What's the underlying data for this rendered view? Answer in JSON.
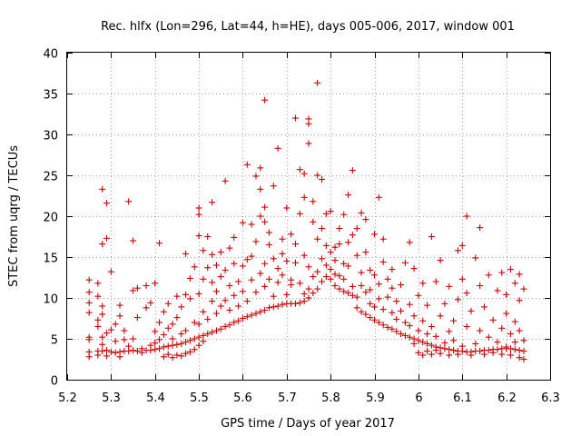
{
  "chart_data": {
    "type": "scatter",
    "title": "Rec. hlfx (Lon=296, Lat=44, h=HE), days 005-006, 2017, window 001",
    "xlabel": "GPS time / Days of year 2017",
    "ylabel": "STEC from uqrg / TECUs",
    "xlim": [
      5.2,
      6.3
    ],
    "ylim": [
      0,
      40
    ],
    "xticks": [
      "5.2",
      "5.3",
      "5.4",
      "5.5",
      "5.6",
      "5.7",
      "5.8",
      "5.9",
      "6",
      "6.1",
      "6.2",
      "6.3"
    ],
    "yticks": [
      "0",
      "5",
      "10",
      "15",
      "20",
      "25",
      "30",
      "35",
      "40"
    ],
    "grid": true,
    "marker": "+",
    "color": "#cc0000",
    "points": [
      [
        5.25,
        3.4
      ],
      [
        5.25,
        2.8
      ],
      [
        5.25,
        4.9
      ],
      [
        5.25,
        5.2
      ],
      [
        5.25,
        8.2
      ],
      [
        5.25,
        9.4
      ],
      [
        5.25,
        10.7
      ],
      [
        5.25,
        12.2
      ],
      [
        5.27,
        3.5
      ],
      [
        5.27,
        3.0
      ],
      [
        5.27,
        6.5
      ],
      [
        5.27,
        7.3
      ],
      [
        5.27,
        11.8
      ],
      [
        5.27,
        10.2
      ],
      [
        5.28,
        3.5
      ],
      [
        5.28,
        4.3
      ],
      [
        5.28,
        5.2
      ],
      [
        5.28,
        8.0
      ],
      [
        5.28,
        9.0
      ],
      [
        5.28,
        16.6
      ],
      [
        5.28,
        23.3
      ],
      [
        5.29,
        3.6
      ],
      [
        5.29,
        2.9
      ],
      [
        5.29,
        5.7
      ],
      [
        5.29,
        17.3
      ],
      [
        5.29,
        21.6
      ],
      [
        5.3,
        3.4
      ],
      [
        5.3,
        6.1
      ],
      [
        5.3,
        13.2
      ],
      [
        5.31,
        3.3
      ],
      [
        5.31,
        4.7
      ],
      [
        5.31,
        6.8
      ],
      [
        5.32,
        3.4
      ],
      [
        5.32,
        2.8
      ],
      [
        5.32,
        7.8
      ],
      [
        5.32,
        9.1
      ],
      [
        5.33,
        3.5
      ],
      [
        5.33,
        4.9
      ],
      [
        5.33,
        6.0
      ],
      [
        5.34,
        3.5
      ],
      [
        5.34,
        21.8
      ],
      [
        5.34,
        4.1
      ],
      [
        5.35,
        3.6
      ],
      [
        5.35,
        17.0
      ],
      [
        5.35,
        10.9
      ],
      [
        5.35,
        5.0
      ],
      [
        5.36,
        3.5
      ],
      [
        5.36,
        7.6
      ],
      [
        5.36,
        11.2
      ],
      [
        5.37,
        3.3
      ],
      [
        5.37,
        3.8
      ],
      [
        5.38,
        3.6
      ],
      [
        5.38,
        11.5
      ],
      [
        5.38,
        8.8
      ],
      [
        5.39,
        3.6
      ],
      [
        5.39,
        4.2
      ],
      [
        5.39,
        9.4
      ],
      [
        5.4,
        3.7
      ],
      [
        5.4,
        4.5
      ],
      [
        5.4,
        5.9
      ],
      [
        5.4,
        11.8
      ],
      [
        5.41,
        3.8
      ],
      [
        5.41,
        4.9
      ],
      [
        5.41,
        16.7
      ],
      [
        5.41,
        7.0
      ],
      [
        5.42,
        4.0
      ],
      [
        5.42,
        2.8
      ],
      [
        5.42,
        5.5
      ],
      [
        5.42,
        8.3
      ],
      [
        5.43,
        4.1
      ],
      [
        5.43,
        3.1
      ],
      [
        5.43,
        6.3
      ],
      [
        5.43,
        9.3
      ],
      [
        5.44,
        4.2
      ],
      [
        5.44,
        2.7
      ],
      [
        5.44,
        5.0
      ],
      [
        5.44,
        6.8
      ],
      [
        5.45,
        4.3
      ],
      [
        5.45,
        3.0
      ],
      [
        5.45,
        7.6
      ],
      [
        5.45,
        10.2
      ],
      [
        5.46,
        4.4
      ],
      [
        5.46,
        2.9
      ],
      [
        5.46,
        5.6
      ],
      [
        5.46,
        8.9
      ],
      [
        5.47,
        4.6
      ],
      [
        5.47,
        3.2
      ],
      [
        5.47,
        6.0
      ],
      [
        5.47,
        10.4
      ],
      [
        5.47,
        15.4
      ],
      [
        5.48,
        4.8
      ],
      [
        5.48,
        3.4
      ],
      [
        5.48,
        9.9
      ],
      [
        5.48,
        12.4
      ],
      [
        5.49,
        5.0
      ],
      [
        5.49,
        3.7
      ],
      [
        5.49,
        7.0
      ],
      [
        5.49,
        13.8
      ],
      [
        5.5,
        5.2
      ],
      [
        5.5,
        4.2
      ],
      [
        5.5,
        6.8
      ],
      [
        5.5,
        10.5
      ],
      [
        5.5,
        17.6
      ],
      [
        5.5,
        20.2
      ],
      [
        5.5,
        21.0
      ],
      [
        5.51,
        5.4
      ],
      [
        5.51,
        4.7
      ],
      [
        5.51,
        8.3
      ],
      [
        5.51,
        12.3
      ],
      [
        5.51,
        15.8
      ],
      [
        5.52,
        5.6
      ],
      [
        5.52,
        7.4
      ],
      [
        5.52,
        13.7
      ],
      [
        5.52,
        17.5
      ],
      [
        5.53,
        5.8
      ],
      [
        5.53,
        9.6
      ],
      [
        5.53,
        11.9
      ],
      [
        5.53,
        15.3
      ],
      [
        5.53,
        21.7
      ],
      [
        5.54,
        6.0
      ],
      [
        5.54,
        8.1
      ],
      [
        5.54,
        10.8
      ],
      [
        5.54,
        14.0
      ],
      [
        5.55,
        6.2
      ],
      [
        5.55,
        9.0
      ],
      [
        5.55,
        12.6
      ],
      [
        5.55,
        15.6
      ],
      [
        5.56,
        6.5
      ],
      [
        5.56,
        9.7
      ],
      [
        5.56,
        13.4
      ],
      [
        5.56,
        24.3
      ],
      [
        5.57,
        6.7
      ],
      [
        5.57,
        8.5
      ],
      [
        5.57,
        11.5
      ],
      [
        5.57,
        16.1
      ],
      [
        5.58,
        7.0
      ],
      [
        5.58,
        10.3
      ],
      [
        5.58,
        14.2
      ],
      [
        5.58,
        17.4
      ],
      [
        5.59,
        7.2
      ],
      [
        5.59,
        9.0
      ],
      [
        5.59,
        12.0
      ],
      [
        5.6,
        7.5
      ],
      [
        5.6,
        10.8
      ],
      [
        5.6,
        13.9
      ],
      [
        5.6,
        19.2
      ],
      [
        5.61,
        7.7
      ],
      [
        5.61,
        9.6
      ],
      [
        5.61,
        14.7
      ],
      [
        5.61,
        26.3
      ],
      [
        5.62,
        7.9
      ],
      [
        5.62,
        12.2
      ],
      [
        5.62,
        15.1
      ],
      [
        5.62,
        19.0
      ],
      [
        5.63,
        8.1
      ],
      [
        5.63,
        10.7
      ],
      [
        5.63,
        16.9
      ],
      [
        5.63,
        24.9
      ],
      [
        5.64,
        8.3
      ],
      [
        5.64,
        13.0
      ],
      [
        5.64,
        20.0
      ],
      [
        5.64,
        23.3
      ],
      [
        5.64,
        25.9
      ],
      [
        5.65,
        8.5
      ],
      [
        5.65,
        11.4
      ],
      [
        5.65,
        14.2
      ],
      [
        5.65,
        19.3
      ],
      [
        5.65,
        21.1
      ],
      [
        5.65,
        34.2
      ],
      [
        5.66,
        8.8
      ],
      [
        5.66,
        12.3
      ],
      [
        5.66,
        16.5
      ],
      [
        5.66,
        18.0
      ],
      [
        5.67,
        8.9
      ],
      [
        5.67,
        10.2
      ],
      [
        5.67,
        14.8
      ],
      [
        5.67,
        23.7
      ],
      [
        5.68,
        9.0
      ],
      [
        5.68,
        11.9
      ],
      [
        5.68,
        13.6
      ],
      [
        5.68,
        28.3
      ],
      [
        5.69,
        9.2
      ],
      [
        5.69,
        12.8
      ],
      [
        5.69,
        15.4
      ],
      [
        5.69,
        17.2
      ],
      [
        5.7,
        9.3
      ],
      [
        5.7,
        10.4
      ],
      [
        5.7,
        14.5
      ],
      [
        5.7,
        21.0
      ],
      [
        5.71,
        9.3
      ],
      [
        5.71,
        11.6
      ],
      [
        5.71,
        12.2
      ],
      [
        5.71,
        17.8
      ],
      [
        5.72,
        9.3
      ],
      [
        5.72,
        14.3
      ],
      [
        5.72,
        16.6
      ],
      [
        5.72,
        32.0
      ],
      [
        5.73,
        9.4
      ],
      [
        5.73,
        11.8
      ],
      [
        5.73,
        20.3
      ],
      [
        5.73,
        25.7
      ],
      [
        5.74,
        9.6
      ],
      [
        5.74,
        10.5
      ],
      [
        5.74,
        15.2
      ],
      [
        5.74,
        22.3
      ],
      [
        5.74,
        25.2
      ],
      [
        5.75,
        10.0
      ],
      [
        5.75,
        11.1
      ],
      [
        5.75,
        13.8
      ],
      [
        5.75,
        28.9
      ],
      [
        5.75,
        31.3
      ],
      [
        5.75,
        31.9
      ],
      [
        5.76,
        10.6
      ],
      [
        5.76,
        12.6
      ],
      [
        5.76,
        19.3
      ],
      [
        5.76,
        21.8
      ],
      [
        5.77,
        11.1
      ],
      [
        5.77,
        13.2
      ],
      [
        5.77,
        17.2
      ],
      [
        5.77,
        25.0
      ],
      [
        5.77,
        36.3
      ],
      [
        5.78,
        12.0
      ],
      [
        5.78,
        14.8
      ],
      [
        5.78,
        18.5
      ],
      [
        5.78,
        24.5
      ],
      [
        5.79,
        12.6
      ],
      [
        5.79,
        14.0
      ],
      [
        5.79,
        16.4
      ],
      [
        5.79,
        20.3
      ],
      [
        5.8,
        12.3
      ],
      [
        5.8,
        13.5
      ],
      [
        5.8,
        15.6
      ],
      [
        5.8,
        20.6
      ],
      [
        5.81,
        11.5
      ],
      [
        5.81,
        12.9
      ],
      [
        5.81,
        14.6
      ],
      [
        5.81,
        16.2
      ],
      [
        5.82,
        11.1
      ],
      [
        5.82,
        12.7
      ],
      [
        5.82,
        16.6
      ],
      [
        5.82,
        18.5
      ],
      [
        5.83,
        10.8
      ],
      [
        5.83,
        12.3
      ],
      [
        5.83,
        14.2
      ],
      [
        5.83,
        20.2
      ],
      [
        5.84,
        10.6
      ],
      [
        5.84,
        13.9
      ],
      [
        5.84,
        16.8
      ],
      [
        5.84,
        22.6
      ],
      [
        5.85,
        10.3
      ],
      [
        5.85,
        11.4
      ],
      [
        5.85,
        17.7
      ],
      [
        5.85,
        25.6
      ],
      [
        5.86,
        8.8
      ],
      [
        5.86,
        10.1
      ],
      [
        5.86,
        15.2
      ],
      [
        5.86,
        18.5
      ],
      [
        5.87,
        8.3
      ],
      [
        5.87,
        11.5
      ],
      [
        5.87,
        13.1
      ],
      [
        5.87,
        20.4
      ],
      [
        5.88,
        8.0
      ],
      [
        5.88,
        10.7
      ],
      [
        5.88,
        15.6
      ],
      [
        5.88,
        19.6
      ],
      [
        5.89,
        7.6
      ],
      [
        5.89,
        9.3
      ],
      [
        5.89,
        11.0
      ],
      [
        5.89,
        13.4
      ],
      [
        5.9,
        7.3
      ],
      [
        5.9,
        8.9
      ],
      [
        5.9,
        12.8
      ],
      [
        5.9,
        17.8
      ],
      [
        5.91,
        7.0
      ],
      [
        5.91,
        9.9
      ],
      [
        5.91,
        11.7
      ],
      [
        5.91,
        22.3
      ],
      [
        5.92,
        6.7
      ],
      [
        5.92,
        8.6
      ],
      [
        5.92,
        14.4
      ],
      [
        5.92,
        17.2
      ],
      [
        5.93,
        6.4
      ],
      [
        5.93,
        10.1
      ],
      [
        5.93,
        12.3
      ],
      [
        5.94,
        6.2
      ],
      [
        5.94,
        8.2
      ],
      [
        5.94,
        11.2
      ],
      [
        5.94,
        13.5
      ],
      [
        5.95,
        5.9
      ],
      [
        5.95,
        7.4
      ],
      [
        5.95,
        9.6
      ],
      [
        5.96,
        5.6
      ],
      [
        5.96,
        8.4
      ],
      [
        5.96,
        11.6
      ],
      [
        5.97,
        5.4
      ],
      [
        5.97,
        7.0
      ],
      [
        5.97,
        14.3
      ],
      [
        5.98,
        5.2
      ],
      [
        5.98,
        6.6
      ],
      [
        5.98,
        9.2
      ],
      [
        5.98,
        16.8
      ],
      [
        5.99,
        5.0
      ],
      [
        5.99,
        4.4
      ],
      [
        5.99,
        7.8
      ],
      [
        5.99,
        13.6
      ],
      [
        6.0,
        4.8
      ],
      [
        6.0,
        3.3
      ],
      [
        6.0,
        6.0
      ],
      [
        6.0,
        10.3
      ],
      [
        6.01,
        4.6
      ],
      [
        6.01,
        3.0
      ],
      [
        6.01,
        7.2
      ],
      [
        6.01,
        11.8
      ],
      [
        6.02,
        4.4
      ],
      [
        6.02,
        3.5
      ],
      [
        6.02,
        5.6
      ],
      [
        6.02,
        9.1
      ],
      [
        6.03,
        4.2
      ],
      [
        6.03,
        3.1
      ],
      [
        6.03,
        6.5
      ],
      [
        6.03,
        17.5
      ],
      [
        6.04,
        4.0
      ],
      [
        6.04,
        3.6
      ],
      [
        6.04,
        5.3
      ],
      [
        6.04,
        12.0
      ],
      [
        6.05,
        3.9
      ],
      [
        6.05,
        3.2
      ],
      [
        6.05,
        7.8
      ],
      [
        6.05,
        14.6
      ],
      [
        6.06,
        3.8
      ],
      [
        6.06,
        4.5
      ],
      [
        6.06,
        9.3
      ],
      [
        6.07,
        3.7
      ],
      [
        6.07,
        3.0
      ],
      [
        6.07,
        5.9
      ],
      [
        6.07,
        11.4
      ],
      [
        6.08,
        3.6
      ],
      [
        6.08,
        4.8
      ],
      [
        6.08,
        7.2
      ],
      [
        6.09,
        3.5
      ],
      [
        6.09,
        3.1
      ],
      [
        6.09,
        9.8
      ],
      [
        6.09,
        15.8
      ],
      [
        6.1,
        3.5
      ],
      [
        6.1,
        4.1
      ],
      [
        6.1,
        12.3
      ],
      [
        6.1,
        16.4
      ],
      [
        6.11,
        3.4
      ],
      [
        6.11,
        6.5
      ],
      [
        6.11,
        10.6
      ],
      [
        6.11,
        20.0
      ],
      [
        6.12,
        3.4
      ],
      [
        6.12,
        3.0
      ],
      [
        6.12,
        8.4
      ],
      [
        6.13,
        3.5
      ],
      [
        6.13,
        4.4
      ],
      [
        6.13,
        14.9
      ],
      [
        6.14,
        3.5
      ],
      [
        6.14,
        6.0
      ],
      [
        6.14,
        11.5
      ],
      [
        6.14,
        18.6
      ],
      [
        6.15,
        3.6
      ],
      [
        6.15,
        3.1
      ],
      [
        6.15,
        8.9
      ],
      [
        6.16,
        3.6
      ],
      [
        6.16,
        5.2
      ],
      [
        6.16,
        12.8
      ],
      [
        6.17,
        3.7
      ],
      [
        6.17,
        3.3
      ],
      [
        6.17,
        7.3
      ],
      [
        6.18,
        3.7
      ],
      [
        6.18,
        4.6
      ],
      [
        6.18,
        10.9
      ],
      [
        6.19,
        3.8
      ],
      [
        6.19,
        3.1
      ],
      [
        6.19,
        6.3
      ],
      [
        6.19,
        13.1
      ],
      [
        6.2,
        3.8
      ],
      [
        6.2,
        4.0
      ],
      [
        6.2,
        8.1
      ],
      [
        6.2,
        10.4
      ],
      [
        6.21,
        3.8
      ],
      [
        6.21,
        3.0
      ],
      [
        6.21,
        5.6
      ],
      [
        6.21,
        13.5
      ],
      [
        6.22,
        3.7
      ],
      [
        6.22,
        4.6
      ],
      [
        6.22,
        7.1
      ],
      [
        6.22,
        11.8
      ],
      [
        6.23,
        3.6
      ],
      [
        6.23,
        2.7
      ],
      [
        6.23,
        6.0
      ],
      [
        6.23,
        9.7
      ],
      [
        6.23,
        12.9
      ],
      [
        6.24,
        3.5
      ],
      [
        6.24,
        2.5
      ],
      [
        6.24,
        4.8
      ],
      [
        6.24,
        11.1
      ]
    ]
  }
}
